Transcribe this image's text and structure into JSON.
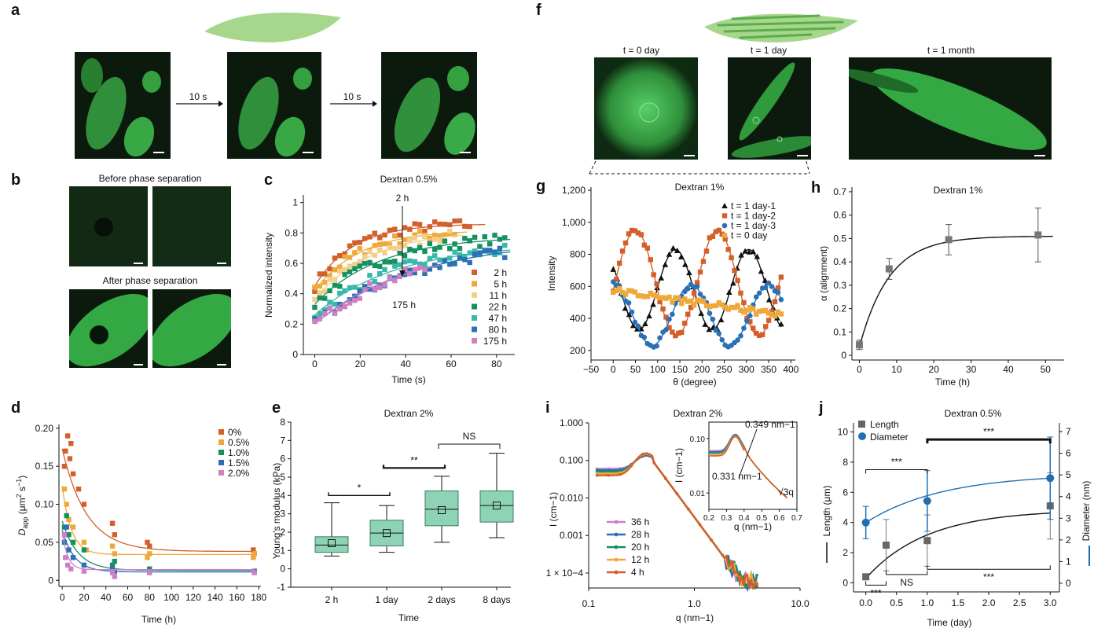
{
  "panel_labels": [
    "a",
    "b",
    "c",
    "d",
    "e",
    "f",
    "g",
    "h",
    "i",
    "j"
  ],
  "panel_a": {
    "arrow_1": "10 s",
    "arrow_2": "10 s"
  },
  "panel_b": {
    "before": "Before phase separation",
    "after": "After phase separation"
  },
  "panel_f": {
    "t0": "t = 0 day",
    "t1": "t = 1 day",
    "t2": "t = 1 month"
  },
  "colors": {
    "orange": "#d35f2a",
    "lightorange": "#efa83a",
    "pale": "#f3cf8a",
    "green": "#159060",
    "teal": "#38b8a8",
    "blue": "#2a70b5",
    "pink": "#cf7fc4",
    "black": "#111111",
    "box": "#8fd3b6",
    "cell": "#58c45c",
    "leaf": "#a6d78c"
  },
  "chart_data": [
    {
      "id": "c",
      "type": "scatter",
      "title": "Dextran 0.5%",
      "xlabel": "Time (s)",
      "ylabel": "Normalized intensity",
      "xlim": [
        -5,
        88
      ],
      "ylim": [
        0,
        1.05
      ],
      "xticks": [
        0,
        20,
        40,
        60,
        80
      ],
      "yticks": [
        0,
        0.2,
        0.4,
        0.6,
        0.8,
        1.0
      ],
      "annotation_top": "2 h",
      "annotation_bottom": "175 h",
      "series": [
        {
          "name": "2 h",
          "color": "#d35f2a",
          "y0": 0.45,
          "plateau": 0.86,
          "rate": 0.06,
          "tmax": 70
        },
        {
          "name": "5 h",
          "color": "#efa83a",
          "y0": 0.42,
          "plateau": 0.82,
          "rate": 0.05,
          "tmax": 62
        },
        {
          "name": "11 h",
          "color": "#f3cf8a",
          "y0": 0.36,
          "plateau": 0.82,
          "rate": 0.04,
          "tmax": 60
        },
        {
          "name": "22 h",
          "color": "#159060",
          "y0": 0.33,
          "plateau": 0.78,
          "rate": 0.035,
          "tmax": 85
        },
        {
          "name": "47 h",
          "color": "#38b8a8",
          "y0": 0.26,
          "plateau": 0.73,
          "rate": 0.028,
          "tmax": 85
        },
        {
          "name": "80 h",
          "color": "#2a70b5",
          "y0": 0.2,
          "plateau": 0.76,
          "rate": 0.022,
          "tmax": 85
        },
        {
          "name": "175 h",
          "color": "#cf7fc4",
          "y0": 0.2,
          "plateau": 0.72,
          "rate": 0.025,
          "tmax": 50
        }
      ]
    },
    {
      "id": "d",
      "type": "scatter",
      "title": "",
      "xlabel": "Time (h)",
      "ylabel": "Dapp (μm2 s−1)",
      "ylabel_main": "D",
      "ylabel_sub": "app",
      "ylabel_rest": " (μm",
      "ylabel_sup": "2",
      "ylabel_end": " s",
      "ylabel_sup2": "−1",
      "ylabel_close": ")",
      "xlim": [
        -3,
        182
      ],
      "ylim": [
        -0.008,
        0.205
      ],
      "xticks": [
        0,
        20,
        40,
        60,
        80,
        100,
        120,
        140,
        160,
        180
      ],
      "yticks": [
        0,
        0.05,
        0.1,
        0.15,
        0.2
      ],
      "series": [
        {
          "name": "0%",
          "color": "#d35f2a",
          "points": [
            [
              2,
              0.15
            ],
            [
              3,
              0.17
            ],
            [
              5,
              0.19
            ],
            [
              7,
              0.16
            ],
            [
              8,
              0.18
            ],
            [
              10,
              0.14
            ],
            [
              15,
              0.12
            ],
            [
              20,
              0.1
            ],
            [
              46,
              0.075
            ],
            [
              48,
              0.06
            ],
            [
              78,
              0.05
            ],
            [
              80,
              0.045
            ],
            [
              175,
              0.04
            ],
            [
              176,
              0.035
            ]
          ],
          "fit": {
            "a": 0.135,
            "k": 0.045,
            "c": 0.038
          }
        },
        {
          "name": "0.5%",
          "color": "#efa83a",
          "points": [
            [
              2,
              0.12
            ],
            [
              4,
              0.1
            ],
            [
              6,
              0.08
            ],
            [
              10,
              0.07
            ],
            [
              20,
              0.05
            ],
            [
              22,
              0.04
            ],
            [
              46,
              0.045
            ],
            [
              48,
              0.035
            ],
            [
              78,
              0.03
            ],
            [
              80,
              0.035
            ],
            [
              175,
              0.03
            ],
            [
              176,
              0.035
            ]
          ],
          "fit": {
            "a": 0.09,
            "k": 0.12,
            "c": 0.034
          }
        },
        {
          "name": "1.0%",
          "color": "#159060",
          "points": [
            [
              2,
              0.07
            ],
            [
              4,
              0.085
            ],
            [
              6,
              0.06
            ],
            [
              10,
              0.05
            ],
            [
              20,
              0.04
            ],
            [
              46,
              0.02
            ],
            [
              48,
              0.025
            ],
            [
              80,
              0.015
            ],
            [
              176,
              0.012
            ]
          ],
          "fit": {
            "a": 0.065,
            "k": 0.07,
            "c": 0.013
          }
        },
        {
          "name": "1.5%",
          "color": "#2a70b5",
          "points": [
            [
              2,
              0.05
            ],
            [
              4,
              0.07
            ],
            [
              6,
              0.04
            ],
            [
              10,
              0.03
            ],
            [
              20,
              0.02
            ],
            [
              46,
              0.015
            ],
            [
              48,
              0.012
            ],
            [
              80,
              0.012
            ],
            [
              176,
              0.012
            ]
          ],
          "fit": {
            "a": 0.055,
            "k": 0.09,
            "c": 0.011
          }
        },
        {
          "name": "2.0%",
          "color": "#cf7fc4",
          "points": [
            [
              2,
              0.06
            ],
            [
              3,
              0.03
            ],
            [
              5,
              0.02
            ],
            [
              8,
              0.015
            ],
            [
              20,
              0.012
            ],
            [
              46,
              0.01
            ],
            [
              48,
              0.005
            ],
            [
              80,
              0.01
            ],
            [
              176,
              0.01
            ]
          ],
          "fit": {
            "a": 0.05,
            "k": 0.2,
            "c": 0.014
          }
        }
      ]
    },
    {
      "id": "e",
      "type": "box",
      "title": "Dextran 2%",
      "xlabel": "Time",
      "ylabel": "Young's modulus (kPa)",
      "ylim": [
        -1,
        8
      ],
      "yticks": [
        -1,
        0,
        1,
        2,
        3,
        4,
        5,
        6,
        7,
        8
      ],
      "categories": [
        "2 h",
        "1 day",
        "2 days",
        "8 days"
      ],
      "boxes": [
        {
          "min": 0.7,
          "q1": 0.9,
          "median": 1.3,
          "q3": 1.75,
          "max": 3.6,
          "mean": 1.4
        },
        {
          "min": 0.9,
          "q1": 1.25,
          "median": 1.95,
          "q3": 2.65,
          "max": 3.45,
          "mean": 1.95
        },
        {
          "min": 1.45,
          "q1": 2.35,
          "median": 3.25,
          "q3": 4.25,
          "max": 5.05,
          "mean": 3.2
        },
        {
          "min": 1.7,
          "q1": 2.55,
          "median": 3.45,
          "q3": 4.25,
          "max": 6.3,
          "mean": 3.45
        }
      ],
      "significance": [
        {
          "label": "*",
          "from": 0,
          "to": 1,
          "y": 4.0
        },
        {
          "label": "**",
          "from": 1,
          "to": 2,
          "y": 5.5
        },
        {
          "label": "NS",
          "from": 2,
          "to": 3,
          "y": 6.8
        }
      ]
    },
    {
      "id": "g",
      "type": "scatter",
      "title": "Dextran 1%",
      "xlabel": "θ (degree)",
      "ylabel": "Intensity",
      "xlim": [
        -50,
        410
      ],
      "ylim": [
        140,
        1220
      ],
      "xticks": [
        -50,
        0,
        50,
        100,
        150,
        200,
        250,
        300,
        350,
        400
      ],
      "yticks": [
        200,
        400,
        600,
        800,
        "1,000",
        "1,200"
      ],
      "series": [
        {
          "name": "t = 1 day-1",
          "color": "#111111",
          "marker": "triangle",
          "mean": 580,
          "amp": 250,
          "period": 165,
          "phase": 140
        },
        {
          "name": "t = 1 day-2",
          "color": "#d35f2a",
          "marker": "square",
          "mean": 620,
          "amp": 330,
          "period": 185,
          "phase": 50
        },
        {
          "name": "t = 1 day-3",
          "color": "#2a70b5",
          "marker": "circle",
          "mean": 420,
          "amp": 190,
          "period": 175,
          "phase": 175
        },
        {
          "name": "t = 0 day",
          "color": "#efa83a",
          "marker": "square",
          "start": 575,
          "end": 420
        }
      ]
    },
    {
      "id": "h",
      "type": "scatter",
      "title": "Dextran 1%",
      "xlabel": "Time (h)",
      "ylabel": "α (alignment)",
      "xlim": [
        -2,
        55
      ],
      "ylim": [
        -0.02,
        0.72
      ],
      "xticks": [
        0,
        10,
        20,
        30,
        40,
        50
      ],
      "yticks": [
        0,
        0.1,
        0.2,
        0.3,
        0.4,
        0.5,
        0.6,
        0.7
      ],
      "points": [
        {
          "x": 0,
          "y": 0.045,
          "err": 0.02
        },
        {
          "x": 8,
          "y": 0.37,
          "err": 0.045
        },
        {
          "x": 24,
          "y": 0.495,
          "err": 0.065
        },
        {
          "x": 48,
          "y": 0.515,
          "err": 0.115
        }
      ],
      "fit": {
        "a": 0.51,
        "k": 0.125,
        "y0": 0.035
      }
    },
    {
      "id": "i",
      "type": "line",
      "title": "Dextran 2%",
      "xlabel": "q (nm−1)",
      "ylabel": "I (cm−1)",
      "xscale": "log",
      "yscale": "log",
      "xlim": [
        0.1,
        10
      ],
      "ylim": [
        4e-05,
        1
      ],
      "xticks": [
        "0.1",
        "1.0",
        "10.0"
      ],
      "yticks": [
        "1.000",
        "0.100",
        "0.010",
        "0.001",
        "1 × 10−4"
      ],
      "series": [
        {
          "name": "36 h",
          "color": "#cf7fc4"
        },
        {
          "name": "28 h",
          "color": "#2a70b5"
        },
        {
          "name": "20 h",
          "color": "#159060"
        },
        {
          "name": "12 h",
          "color": "#efa83a"
        },
        {
          "name": "4 h",
          "color": "#d35f2a"
        }
      ],
      "inset": {
        "xlabel": "q (nm−1)",
        "ylabel": "I (cm−1)",
        "xticks": [
          "0.2",
          "0.3",
          "0.4",
          "0.5",
          "0.6",
          "0.7"
        ],
        "yticks": [
          "0.10",
          "0.01"
        ],
        "annotation_top": "0.349 nm−1",
        "annotation_bottom": "0.331 nm−1",
        "annotation_root": "√3q"
      }
    },
    {
      "id": "j",
      "type": "line",
      "title": "Dextran 0.5%",
      "xlabel": "Time (day)",
      "ylabel_left": "Length (μm)",
      "ylabel_right": "Diameter (nm)",
      "xlim": [
        -0.2,
        3.15
      ],
      "ylim_left": [
        -0.6,
        10.6
      ],
      "ylim_right": [
        -0.4,
        7.4
      ],
      "xticks": [
        "0.0",
        "0.5",
        "1.0",
        "1.5",
        "2.0",
        "2.5",
        "3.0"
      ],
      "yticks_left": [
        0,
        2,
        4,
        6,
        8,
        10
      ],
      "yticks_right": [
        0,
        1,
        2,
        3,
        4,
        5,
        6,
        7
      ],
      "series": [
        {
          "name": "Length",
          "color": "#666666",
          "axis": "left",
          "points": [
            {
              "x": 0,
              "y": 0.4,
              "err": 0.15
            },
            {
              "x": 0.33,
              "y": 2.5,
              "err": 1.7
            },
            {
              "x": 1,
              "y": 2.8,
              "err": 1.7
            },
            {
              "x": 3,
              "y": 5.1,
              "err": 2.2
            }
          ],
          "fit": {
            "a": 4.85,
            "k": 1.0
          }
        },
        {
          "name": "Diameter",
          "color": "#1f6fb3",
          "axis": "right",
          "points": [
            {
              "x": 0,
              "y": 2.8,
              "err": 0.75
            },
            {
              "x": 1,
              "y": 3.8,
              "err": 1.4
            },
            {
              "x": 3,
              "y": 4.85,
              "err": 1.9
            }
          ]
        }
      ],
      "significance": [
        {
          "label": "***",
          "from": 0,
          "to": 1,
          "y": 7.5,
          "side": "top"
        },
        {
          "label": "***",
          "from": 1,
          "to": 3,
          "y": 9.5,
          "side": "top",
          "bold": true
        },
        {
          "label": "***",
          "from": 0,
          "to": 0.33,
          "y": -0.15,
          "side": "bottom"
        },
        {
          "label": "NS",
          "from": 0.33,
          "to": 1,
          "y": 0.55,
          "side": "bottom"
        },
        {
          "label": "***",
          "from": 1,
          "to": 3,
          "y": 0.9,
          "side": "bottom"
        }
      ]
    }
  ]
}
